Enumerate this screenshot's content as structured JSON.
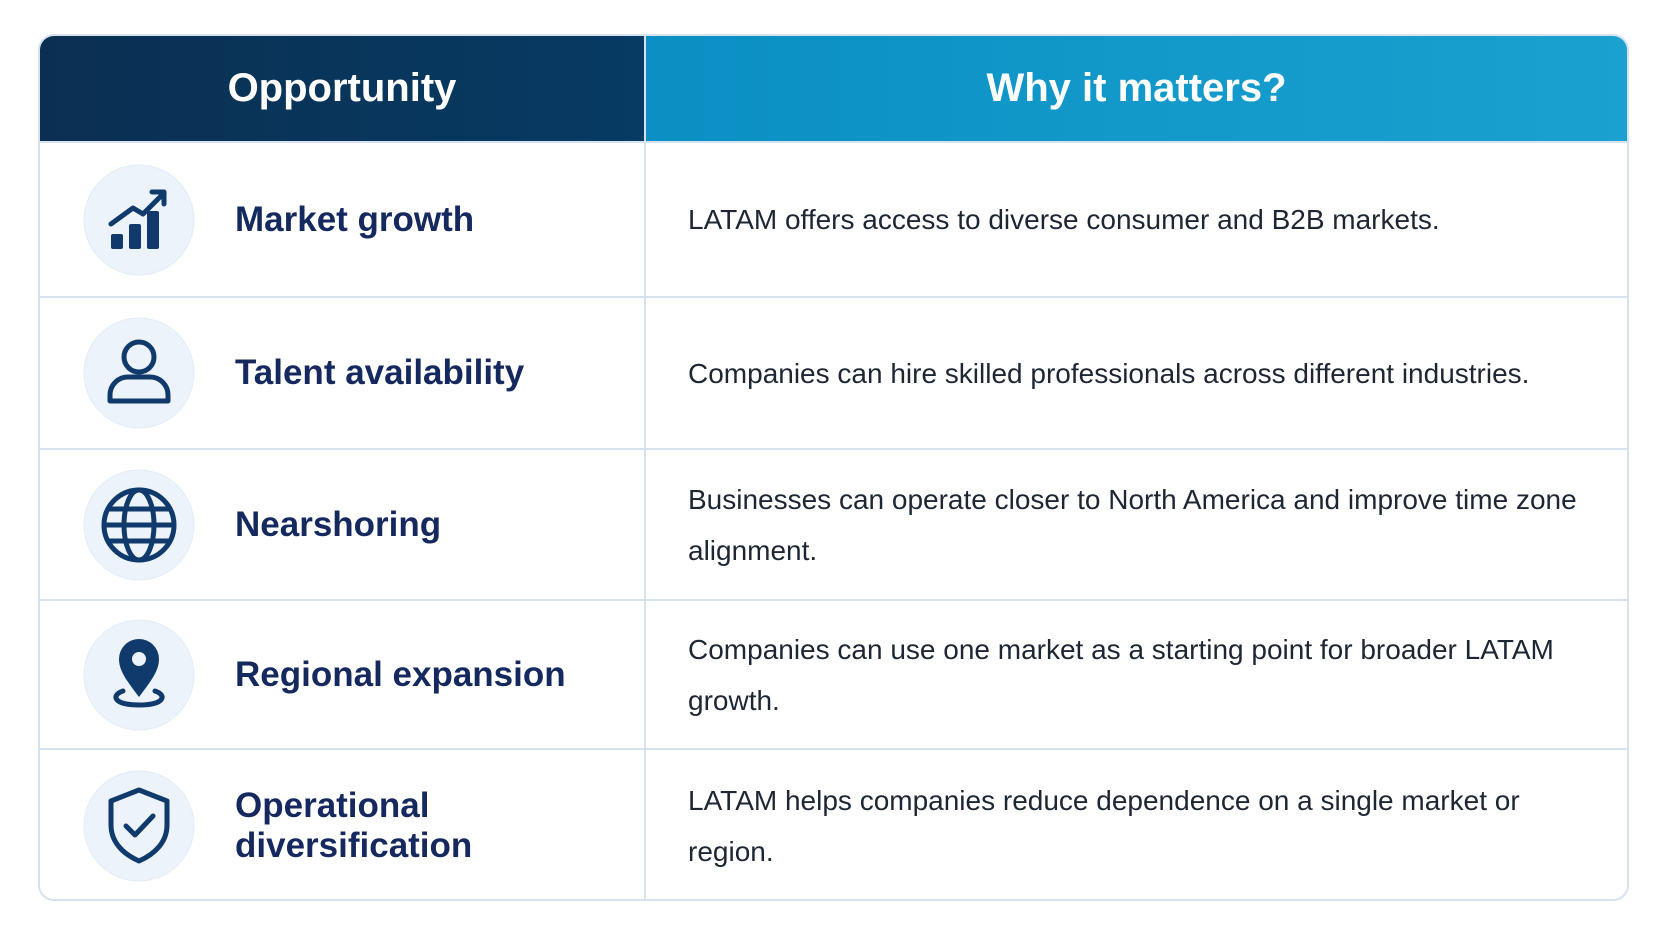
{
  "table": {
    "header": [
      "Opportunity",
      "Why it matters?"
    ],
    "rows": [
      [
        "Market growth",
        "LATAM offers access to diverse consumer and B2B markets."
      ],
      [
        "Talent availability",
        "Companies can hire skilled professionals across different industries."
      ],
      [
        "Nearshoring",
        "Businesses can operate closer to North America and improve time zone alignment."
      ],
      [
        "Regional expansion",
        "Companies can use one market as a starting point for broader LATAM growth."
      ],
      [
        "Operational diversification",
        "LATAM helps companies reduce dependence on a single market or region."
      ]
    ]
  }
}
